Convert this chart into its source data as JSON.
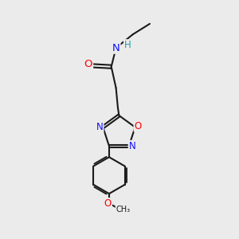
{
  "bg_color": "#ebebeb",
  "bond_color": "#1a1a1a",
  "bond_width": 1.5,
  "atom_colors": {
    "N": "#1010ff",
    "O": "#ff0000",
    "H": "#20a0a0",
    "C": "#1a1a1a"
  },
  "font_size_atoms": 8.5,
  "fig_size": [
    3.0,
    3.0
  ],
  "dpi": 100
}
